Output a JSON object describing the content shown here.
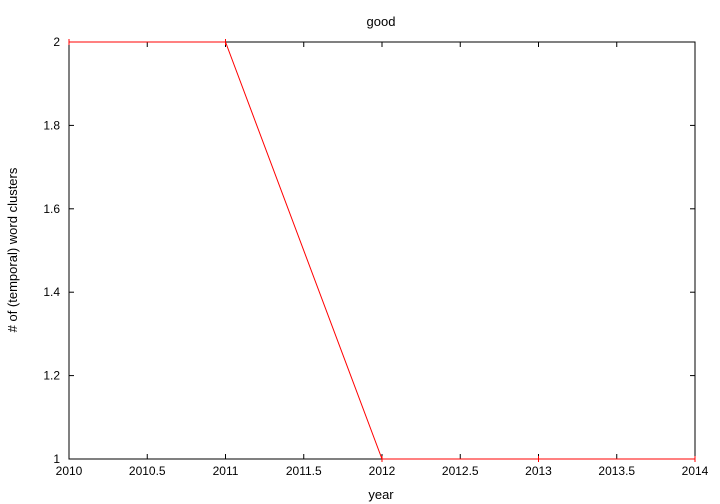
{
  "chart_data": {
    "type": "line",
    "title": "good",
    "xlabel": "year",
    "ylabel": "# of (temporal) word clusters",
    "xlim": [
      2010,
      2014
    ],
    "ylim": [
      1,
      2
    ],
    "x_ticks": [
      "2010",
      "2010.5",
      "2011",
      "2011.5",
      "2012",
      "2012.5",
      "2013",
      "2013.5",
      "2014"
    ],
    "y_ticks": [
      "1",
      "1.2",
      "1.4",
      "1.6",
      "1.8",
      "2"
    ],
    "grid": false,
    "series": [
      {
        "x": [
          2010,
          2011,
          2012,
          2013,
          2014
        ],
        "values": [
          2,
          2,
          1,
          1,
          1
        ],
        "color": "#ff0000"
      }
    ]
  }
}
